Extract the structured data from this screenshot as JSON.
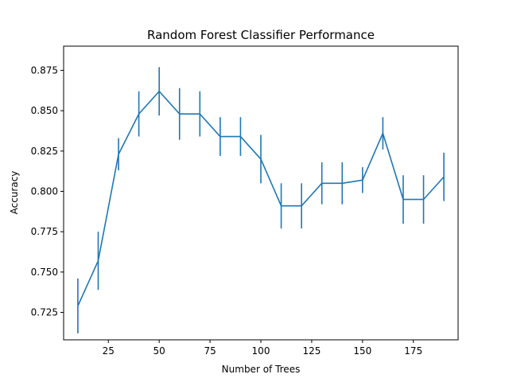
{
  "chart_data": {
    "type": "line",
    "title": "Random Forest Classifier Performance",
    "xlabel": "Number of Trees",
    "ylabel": "Accuracy",
    "xlim": [
      3,
      197
    ],
    "ylim": [
      0.708,
      0.89
    ],
    "xticks": [
      25,
      50,
      75,
      100,
      125,
      150,
      175
    ],
    "xtick_labels": [
      "25",
      "50",
      "75",
      "100",
      "125",
      "150",
      "175"
    ],
    "yticks": [
      0.725,
      0.75,
      0.775,
      0.8,
      0.825,
      0.85,
      0.875
    ],
    "ytick_labels": [
      "0.725",
      "0.750",
      "0.775",
      "0.800",
      "0.825",
      "0.850",
      "0.875"
    ],
    "grid": false,
    "line_color": "#1f77b4",
    "series": [
      {
        "x": [
          10,
          20,
          30,
          40,
          50,
          60,
          70,
          80,
          90,
          100,
          110,
          120,
          130,
          140,
          150,
          160,
          170,
          180,
          190
        ],
        "y": [
          0.729,
          0.757,
          0.823,
          0.848,
          0.862,
          0.848,
          0.848,
          0.834,
          0.834,
          0.82,
          0.791,
          0.791,
          0.805,
          0.805,
          0.807,
          0.836,
          0.795,
          0.795,
          0.809
        ],
        "yerr": [
          0.017,
          0.018,
          0.01,
          0.014,
          0.015,
          0.016,
          0.014,
          0.012,
          0.012,
          0.015,
          0.014,
          0.014,
          0.013,
          0.013,
          0.008,
          0.01,
          0.015,
          0.015,
          0.015
        ]
      }
    ]
  }
}
